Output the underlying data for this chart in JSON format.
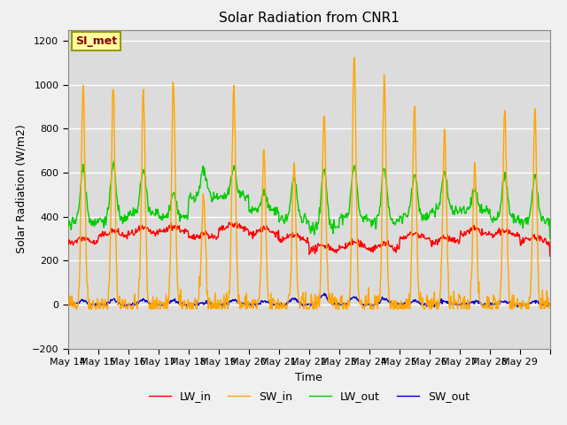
{
  "title": "Solar Radiation from CNR1",
  "xlabel": "Time",
  "ylabel": "Solar Radiation (W/m2)",
  "ylim": [
    -200,
    1250
  ],
  "yticks": [
    -200,
    0,
    200,
    400,
    600,
    800,
    1000,
    1200
  ],
  "date_labels": [
    "May 14",
    "May 15",
    "May 16",
    "May 17",
    "May 18",
    "May 19",
    "May 20",
    "May 21",
    "May 22",
    "May 23",
    "May 24",
    "May 25",
    "May 26",
    "May 27",
    "May 28",
    "May 29"
  ],
  "annotation_text": "SI_met",
  "annotation_bg": "#FFFFA0",
  "annotation_fg": "#8B0000",
  "annotation_edge": "#999900",
  "colors": {
    "LW_in": "#FF0000",
    "SW_in": "#FFA500",
    "LW_out": "#00CC00",
    "SW_out": "#0000CD"
  },
  "bg_color": "#DCDCDC",
  "fig_color": "#F0F0F0",
  "grid_color": "#FFFFFF",
  "title_fontsize": 11,
  "axis_fontsize": 9,
  "tick_fontsize": 8,
  "legend_fontsize": 9
}
